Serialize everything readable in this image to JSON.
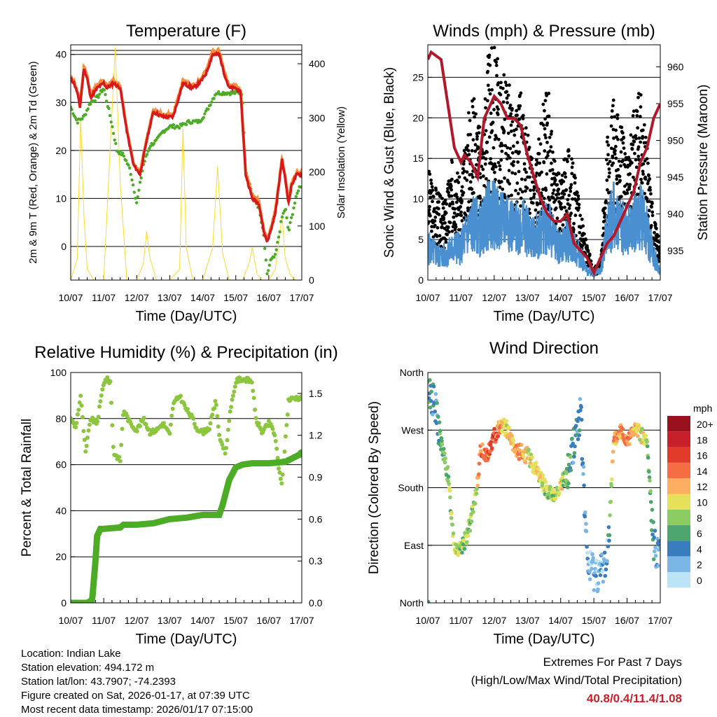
{
  "chart_data": [
    {
      "type": "line",
      "title": "Temperature (F)",
      "xlabel": "Time (Day/UTC)",
      "ylabel": "2m & 9m T (Red, Orange) & 2m Td (Green)",
      "y2label": "Solar Insolation (Yellow)",
      "x_ticks": [
        "10/07",
        "11/07",
        "12/07",
        "13/07",
        "14/07",
        "15/07",
        "16/07",
        "17/07"
      ],
      "xlim": [
        0,
        7
      ],
      "ylim": [
        -7,
        42
      ],
      "y_ticks": [
        "40",
        "30",
        "20",
        "10",
        "0"
      ],
      "y2lim": [
        0,
        435
      ],
      "y2_ticks": [
        "400",
        "300",
        "200",
        "100",
        "0"
      ],
      "series": [
        {
          "name": "2m T",
          "color": "#d7191c",
          "x": [
            0,
            0.1,
            0.2,
            0.28,
            0.4,
            0.5,
            0.6,
            0.8,
            1.0,
            1.1,
            1.3,
            1.5,
            1.7,
            1.9,
            2.1,
            2.3,
            2.5,
            2.8,
            3.1,
            3.4,
            3.7,
            3.9,
            4.1,
            4.3,
            4.5,
            4.65,
            4.8,
            5.0,
            5.15,
            5.3,
            5.5,
            5.7,
            5.85,
            5.95,
            6.05,
            6.2,
            6.4,
            6.5,
            6.6,
            6.7,
            6.85,
            7.0
          ],
          "values": [
            35,
            34,
            32,
            29,
            37,
            35,
            31,
            33,
            34,
            33,
            34,
            33,
            24,
            17,
            15,
            22,
            28,
            27,
            27,
            34,
            33,
            34,
            36,
            40,
            40,
            36,
            33,
            33,
            32,
            15,
            10,
            9,
            3,
            1,
            3,
            7,
            18,
            14,
            9,
            13,
            15,
            15
          ]
        },
        {
          "name": "9m T",
          "color": "#fd8d3c",
          "x": [
            0,
            0.1,
            0.2,
            0.28,
            0.4,
            0.5,
            0.6,
            0.8,
            1.0,
            1.1,
            1.3,
            1.5,
            1.7,
            1.9,
            2.1,
            2.3,
            2.5,
            2.8,
            3.1,
            3.4,
            3.7,
            3.9,
            4.1,
            4.3,
            4.5,
            4.65,
            4.8,
            5.0,
            5.15,
            5.3,
            5.5,
            5.7,
            5.85,
            5.95,
            6.05,
            6.2,
            6.4,
            6.5,
            6.6,
            6.7,
            6.85,
            7.0
          ],
          "values": [
            35.4,
            34.4,
            32.4,
            29.4,
            37.4,
            35.4,
            31.5,
            33.5,
            34.5,
            33.5,
            34.6,
            33.4,
            24.4,
            17.4,
            15.4,
            22.4,
            28.4,
            27.4,
            27.4,
            34.5,
            33.5,
            34.6,
            36.6,
            40.6,
            40.6,
            36.5,
            33.5,
            33.6,
            32.5,
            15.5,
            10.5,
            9.5,
            3.5,
            1.5,
            3.5,
            7.5,
            18.5,
            14.5,
            9.5,
            13.5,
            15.5,
            15.5
          ]
        },
        {
          "name": "2m Td",
          "color": "#4dac26",
          "x": [
            0,
            0.2,
            0.4,
            0.6,
            0.8,
            1.0,
            1.2,
            1.4,
            1.6,
            1.8,
            2.0,
            2.2,
            2.4,
            2.6,
            2.8,
            3.0,
            3.3,
            3.6,
            3.9,
            4.1,
            4.4,
            4.6,
            4.8,
            5.0,
            5.2,
            5.3,
            5.5,
            5.7,
            5.85,
            5.95,
            6.05,
            6.2,
            6.4,
            6.5,
            6.6,
            6.75,
            6.9,
            7.0
          ],
          "values": [
            29,
            26,
            27,
            30,
            31,
            33,
            27,
            20,
            19,
            16,
            9,
            17,
            21,
            22,
            24,
            25,
            25,
            26,
            26,
            28,
            32,
            32,
            32,
            32,
            32,
            16,
            11,
            8,
            2,
            -6,
            -3,
            -2,
            6,
            8,
            3,
            8,
            12,
            13
          ]
        },
        {
          "name": "Solar Insolation",
          "color": "#ffd92f",
          "axis": "y2",
          "x": [
            0,
            0.2,
            0.3,
            0.4,
            0.5,
            0.7,
            1.0,
            1.2,
            1.35,
            1.5,
            1.7,
            2.0,
            2.2,
            2.3,
            2.4,
            2.6,
            3.0,
            3.3,
            3.4,
            3.5,
            3.7,
            4.0,
            4.3,
            4.45,
            4.6,
            4.8,
            5.0,
            5.2,
            5.4,
            5.5,
            5.65,
            5.8,
            6.0,
            6.2,
            6.4,
            6.5,
            6.65,
            6.8,
            7.0
          ],
          "values": [
            0,
            40,
            300,
            120,
            20,
            0,
            0,
            250,
            430,
            180,
            0,
            0,
            30,
            90,
            40,
            0,
            0,
            20,
            280,
            60,
            0,
            0,
            60,
            210,
            50,
            0,
            0,
            0,
            30,
            60,
            10,
            0,
            0,
            20,
            120,
            40,
            10,
            0,
            0
          ]
        }
      ]
    },
    {
      "type": "scatter",
      "title": "Winds (mph) & Pressure (mb)",
      "xlabel": "Time (Day/UTC)",
      "ylabel": "Sonic Wind & Gust (Blue, Black)",
      "y2label": "Station Pressure (Maroon)",
      "x_ticks": [
        "10/07",
        "11/07",
        "12/07",
        "13/07",
        "14/07",
        "15/07",
        "16/07",
        "17/07"
      ],
      "xlim": [
        0,
        7
      ],
      "ylim": [
        0,
        29
      ],
      "y_ticks": [
        "25",
        "20",
        "15",
        "10",
        "5",
        "0"
      ],
      "y2lim": [
        931,
        963
      ],
      "y2_ticks": [
        "960",
        "955",
        "950",
        "945",
        "940",
        "935"
      ],
      "series": [
        {
          "name": "Gust",
          "color": "#000000",
          "x": [
            0,
            0.3,
            0.5,
            0.8,
            1.0,
            1.2,
            1.4,
            1.6,
            1.8,
            2.0,
            2.2,
            2.4,
            2.6,
            2.8,
            3.0,
            3.2,
            3.4,
            3.6,
            3.8,
            4.0,
            4.2,
            4.4,
            4.6,
            4.8,
            5.0,
            5.2,
            5.4,
            5.6,
            5.8,
            6.0,
            6.2,
            6.4,
            6.6,
            6.8,
            7.0
          ],
          "values": [
            10,
            8,
            7,
            12,
            8,
            15,
            17,
            13,
            20,
            21,
            18,
            19,
            14,
            17,
            13,
            10,
            14,
            18,
            11,
            9,
            12,
            10,
            6,
            3,
            1,
            2,
            13,
            16,
            14,
            11,
            15,
            17,
            12,
            6,
            3
          ]
        },
        {
          "name": "Wind",
          "color": "#4a90d0",
          "x": [
            0,
            0.3,
            0.5,
            0.8,
            1.0,
            1.2,
            1.4,
            1.6,
            1.8,
            2.0,
            2.2,
            2.4,
            2.6,
            2.8,
            3.0,
            3.2,
            3.4,
            3.6,
            3.8,
            4.0,
            4.2,
            4.4,
            4.6,
            4.8,
            5.0,
            5.2,
            5.4,
            5.6,
            5.8,
            6.0,
            6.2,
            6.4,
            6.6,
            6.8,
            7.0
          ],
          "values": [
            4,
            3,
            3,
            4,
            4,
            6,
            7,
            6,
            8,
            8,
            7,
            8,
            6,
            7,
            6,
            5,
            6,
            7,
            5,
            4,
            5,
            4,
            3,
            1,
            1,
            1,
            6,
            8,
            7,
            6,
            7,
            8,
            6,
            3,
            1
          ]
        },
        {
          "name": "Station Pressure",
          "color": "#b2182b",
          "axis": "y2",
          "x": [
            0,
            0.1,
            0.4,
            0.6,
            0.8,
            1.0,
            1.1,
            1.3,
            1.5,
            1.7,
            1.9,
            2.0,
            2.2,
            2.4,
            2.6,
            2.8,
            3.0,
            3.2,
            3.4,
            3.6,
            3.8,
            4.0,
            4.2,
            4.4,
            4.6,
            4.8,
            5.0,
            5.2,
            5.4,
            5.6,
            5.8,
            6.0,
            6.2,
            6.4,
            6.6,
            6.8,
            7.0
          ],
          "values": [
            961,
            962,
            961,
            955,
            949,
            947,
            948,
            947,
            945,
            953,
            955,
            956,
            955,
            953,
            953,
            952,
            948,
            945,
            942,
            940,
            939,
            939,
            940,
            936,
            935,
            934,
            932,
            934,
            936,
            937,
            939,
            941,
            943,
            947,
            949,
            953,
            955
          ]
        }
      ]
    },
    {
      "type": "line",
      "title": "Relative Humidity (%) & Precipitation (in)",
      "xlabel": "Time (Day/UTC)",
      "ylabel": "Percent & Total Rainfall",
      "x_ticks": [
        "10/07",
        "11/07",
        "12/07",
        "13/07",
        "14/07",
        "15/07",
        "16/07",
        "17/07"
      ],
      "xlim": [
        0,
        7
      ],
      "ylim": [
        0,
        100
      ],
      "y_ticks": [
        "100",
        "80",
        "60",
        "40",
        "20",
        "0"
      ],
      "y2lim": [
        0,
        1.65
      ],
      "y2_ticks": [
        "1.5",
        "1.2",
        "0.9",
        "0.6",
        "0.3",
        "0.0"
      ],
      "series": [
        {
          "name": "Relative Humidity",
          "color": "#8cc63f",
          "x": [
            0,
            0.15,
            0.3,
            0.45,
            0.6,
            0.8,
            1.0,
            1.1,
            1.2,
            1.3,
            1.5,
            1.6,
            1.8,
            2.0,
            2.2,
            2.4,
            2.6,
            2.8,
            3.0,
            3.1,
            3.3,
            3.5,
            3.7,
            3.8,
            4.0,
            4.2,
            4.4,
            4.5,
            4.7,
            4.8,
            5.0,
            5.1,
            5.3,
            5.5,
            5.6,
            5.8,
            6.0,
            6.1,
            6.2,
            6.3,
            6.4,
            6.6,
            6.75,
            7.0
          ],
          "values": [
            80,
            76,
            90,
            65,
            80,
            78,
            96,
            97,
            96,
            65,
            62,
            84,
            78,
            75,
            80,
            74,
            75,
            78,
            73,
            86,
            90,
            84,
            80,
            76,
            74,
            76,
            88,
            72,
            65,
            80,
            96,
            97,
            97,
            96,
            80,
            74,
            78,
            76,
            72,
            58,
            52,
            88,
            89,
            89
          ]
        },
        {
          "name": "Total Precipitation",
          "color": "#4dac26",
          "axis": "y2",
          "x": [
            0,
            0.5,
            0.65,
            0.75,
            0.8,
            0.9,
            1.0,
            1.5,
            1.6,
            2.0,
            2.5,
            3.0,
            3.5,
            4.0,
            4.5,
            4.6,
            4.8,
            5.0,
            5.2,
            5.5,
            6.0,
            6.5,
            7.0
          ],
          "values": [
            0,
            0,
            0.02,
            0.3,
            0.48,
            0.53,
            0.53,
            0.54,
            0.56,
            0.56,
            0.57,
            0.6,
            0.61,
            0.63,
            0.63,
            0.7,
            0.88,
            0.97,
            0.99,
            1.0,
            1.0,
            1.01,
            1.07
          ]
        }
      ]
    },
    {
      "type": "scatter",
      "title": "Wind Direction",
      "xlabel": "Time (Day/UTC)",
      "ylabel": "Direction (Colored By Speed)",
      "x_ticks": [
        "10/07",
        "11/07",
        "12/07",
        "13/07",
        "14/07",
        "15/07",
        "16/07",
        "17/07"
      ],
      "xlim": [
        0,
        7
      ],
      "ylim": [
        0,
        360
      ],
      "y_ticks": [
        "North",
        "West",
        "South",
        "East",
        "North"
      ],
      "legend": {
        "title": "mph",
        "labels": [
          "20+",
          "18",
          "16",
          "14",
          "12",
          "10",
          "8",
          "6",
          "4",
          "2",
          "0"
        ],
        "colors": [
          "#99101f",
          "#c8202a",
          "#e33b2a",
          "#f46d43",
          "#fdae61",
          "#e6e05a",
          "#8ccc62",
          "#4da66d",
          "#3a7dbf",
          "#7ab7e6",
          "#bde4f6"
        ]
      },
      "series": [
        {
          "name": "Direction",
          "x": [
            0,
            0.2,
            0.4,
            0.6,
            0.8,
            1.0,
            1.2,
            1.4,
            1.6,
            1.8,
            2.0,
            2.2,
            2.4,
            2.6,
            2.8,
            3.0,
            3.2,
            3.4,
            3.6,
            3.8,
            4.0,
            4.2,
            4.4,
            4.6,
            4.8,
            5.0,
            5.2,
            5.4,
            5.6,
            5.8,
            6.0,
            6.2,
            6.4,
            6.6,
            6.8,
            7.0
          ],
          "values": [
            340,
            310,
            250,
            200,
            90,
            80,
            110,
            150,
            240,
            230,
            260,
            280,
            270,
            240,
            235,
            230,
            215,
            195,
            175,
            165,
            185,
            200,
            250,
            300,
            60,
            50,
            45,
            70,
            250,
            270,
            255,
            270,
            265,
            250,
            90,
            80
          ],
          "speeds": [
            3,
            2,
            3,
            4,
            5,
            4,
            4,
            4,
            7,
            7,
            8,
            6,
            5,
            6,
            6,
            5,
            5,
            5,
            4,
            4,
            5,
            3,
            2,
            2,
            1,
            1,
            1,
            1,
            6,
            6,
            7,
            6,
            5,
            4,
            2,
            1
          ]
        }
      ]
    }
  ],
  "info": {
    "location": "Location: Indian Lake",
    "elevation": "Station elevation: 494.172 m",
    "latlon": "Station lat/lon: 43.7907; -74.2393",
    "created": "Figure created on Sat, 2026-01-17, at 07:39 UTC",
    "recent": "Most recent data timestamp: 2026/01/17 07:15:00"
  },
  "extremes": {
    "line1": "Extremes For Past 7 Days",
    "line2": "(High/Low/Max Wind/Total Precipitation)",
    "values": "40.8/0.4/11.4/1.08"
  }
}
